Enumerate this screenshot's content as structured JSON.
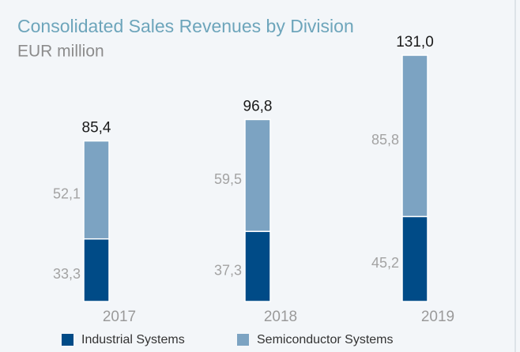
{
  "chart_data": {
    "type": "stacked_bar",
    "title": "Consolidated Sales Revenues by Division",
    "subtitle": "EUR million",
    "categories": [
      "2017",
      "2018",
      "2019"
    ],
    "series": [
      {
        "name": "Industrial Systems",
        "color": "#004b87",
        "values": [
          33.3,
          37.3,
          45.2
        ],
        "value_labels": [
          "33,3",
          "37,3",
          "45,2"
        ]
      },
      {
        "name": "Semiconductor Systems",
        "color": "#7ca3c2",
        "values": [
          52.1,
          59.5,
          85.8
        ],
        "value_labels": [
          "52,1",
          "59,5",
          "85,8"
        ]
      }
    ],
    "totals": [
      85.4,
      96.8,
      131.0
    ],
    "total_labels": [
      "85,4",
      "96,8",
      "131,0"
    ]
  }
}
